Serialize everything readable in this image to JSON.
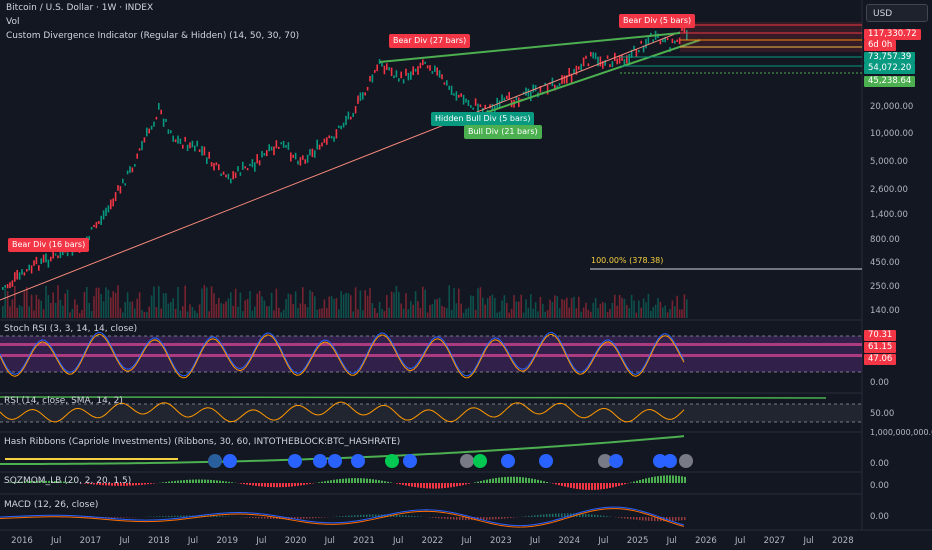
{
  "header": {
    "symbol_line": "Bitcoin / U.S. Dollar · 1W · INDEX",
    "vol_label": "Vol",
    "indicator_line": "Custom Divergence Indicator (Regular & Hidden) (14, 50, 30, 70)"
  },
  "currency": "USD",
  "price_tags": [
    {
      "text": "117,330.72",
      "color": "#f23645"
    },
    {
      "text": "6d 0h",
      "color": "#f23645"
    },
    {
      "text": "73,757.39",
      "color": "#089981"
    },
    {
      "text": "54,072.20",
      "color": "#089981"
    },
    {
      "text": "45,238.64",
      "color": "#4caf50"
    }
  ],
  "price_axis": [
    "20,000.00",
    "10,000.00",
    "5,000.00",
    "2,600.00",
    "1,400.00",
    "800.00",
    "450.00",
    "250.00",
    "140.00"
  ],
  "overlay_texts": {
    "fib_label": "100.00% (378.38)"
  },
  "divergence_flags": [
    {
      "text": "Bear Div (16 bars)",
      "color": "#f23645"
    },
    {
      "text": "Bear Div (27 bars)",
      "color": "#f23645"
    },
    {
      "text": "Bear Div (5 bars)",
      "color": "#f23645"
    },
    {
      "text": "Hidden Bull Div (5 bars)",
      "color": "#089981"
    },
    {
      "text": "Bull Div (21 bars)",
      "color": "#4caf50"
    }
  ],
  "panes": {
    "stoch": {
      "label": "Stoch RSI (3, 3, 14, 14, close)",
      "tags": [
        {
          "text": "70.31",
          "color": "#f23645"
        },
        {
          "text": "61.15",
          "color": "#f23645"
        },
        {
          "text": "47.06",
          "color": "#f23645"
        }
      ],
      "axis": "0.00"
    },
    "rsi": {
      "label": "RSI (14, close, SMA, 14, 2)",
      "axis": "50.00"
    },
    "hash": {
      "label": "Hash Ribbons (Capriole Investments) (Ribbons, 30, 60, INTOTHEBLOCK:BTC_HASHRATE)",
      "axis_top": "1,000,000,000.00",
      "axis": "0.00"
    },
    "sqz": {
      "label": "SQZMOM_LB (20, 2, 20, 1.5)",
      "axis": "0.00"
    },
    "macd": {
      "label": "MACD (12, 26, close)",
      "axis": "0.00"
    }
  },
  "x_axis": [
    "2016",
    "Jul",
    "2017",
    "Jul",
    "2018",
    "Jul",
    "2019",
    "Jul",
    "2020",
    "Jul",
    "2021",
    "Jul",
    "2022",
    "Jul",
    "2023",
    "Jul",
    "2024",
    "Jul",
    "2025",
    "Jul",
    "2026",
    "Jul",
    "2027",
    "Jul",
    "2028"
  ],
  "colors": {
    "up": "#089981",
    "down": "#f23645",
    "bg": "#131722",
    "ema": "#4caf50",
    "rsi": "#ff9800",
    "stoch_k": "#2962ff"
  }
}
